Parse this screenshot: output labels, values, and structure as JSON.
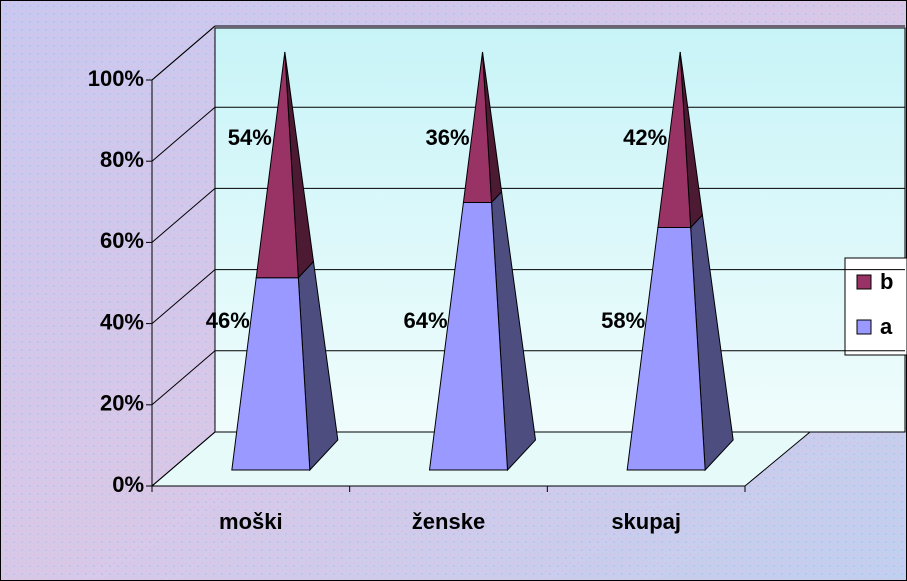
{
  "chart_data": {
    "type": "pyramid3d_stacked",
    "categories": [
      "moški",
      "ženske",
      "skupaj"
    ],
    "series": [
      {
        "name": "a",
        "color": "#9999ff",
        "values": [
          46,
          64,
          58
        ],
        "value_labels": [
          "46%",
          "64%",
          "58%"
        ]
      },
      {
        "name": "b",
        "color": "#993366",
        "values": [
          54,
          36,
          42
        ],
        "value_labels": [
          "54%",
          "36%",
          "42%"
        ]
      }
    ],
    "ylim": [
      0,
      100
    ],
    "yticks": [
      {
        "value": 0,
        "label": "0%"
      },
      {
        "value": 20,
        "label": "20%"
      },
      {
        "value": 40,
        "label": "40%"
      },
      {
        "value": 60,
        "label": "60%"
      },
      {
        "value": 80,
        "label": "80%"
      },
      {
        "value": 100,
        "label": "100%"
      }
    ],
    "grid": true,
    "legend": "right"
  }
}
